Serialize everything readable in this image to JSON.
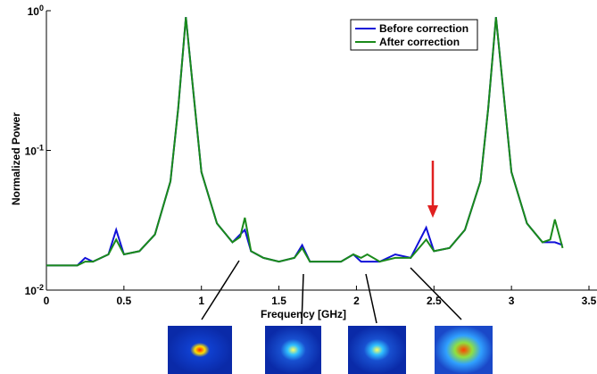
{
  "chart_data": {
    "type": "line",
    "x_label": "Frequency [GHz]",
    "y_label": "Normalized Power",
    "log_y": true,
    "grid": false,
    "legend": "upper right",
    "xlim": [
      0,
      3.5
    ],
    "xticks": [
      0,
      0.5,
      1,
      1.5,
      2,
      2.5,
      3,
      3.5
    ],
    "ylim": [
      0.01,
      1
    ],
    "yticks": [
      {
        "value": 0.01,
        "label": "10^-2"
      },
      {
        "value": 0.1,
        "label": "10^-1"
      },
      {
        "value": 1,
        "label": "10^0"
      }
    ],
    "x": [
      0,
      0.2,
      0.25,
      0.3,
      0.4,
      0.45,
      0.5,
      0.6,
      0.7,
      0.8,
      0.85,
      0.9,
      0.95,
      1.0,
      1.1,
      1.2,
      1.25,
      1.28,
      1.32,
      1.4,
      1.5,
      1.6,
      1.65,
      1.7,
      1.8,
      1.9,
      1.98,
      2.03,
      2.07,
      2.15,
      2.25,
      2.35,
      2.45,
      2.5,
      2.6,
      2.7,
      2.8,
      2.85,
      2.9,
      2.95,
      3.0,
      3.1,
      3.2,
      3.25,
      3.28,
      3.33
    ],
    "series": [
      {
        "name": "Before correction",
        "color": "#1010d8",
        "values": [
          0.015,
          0.015,
          0.017,
          0.016,
          0.018,
          0.027,
          0.018,
          0.019,
          0.025,
          0.06,
          0.2,
          0.9,
          0.25,
          0.07,
          0.03,
          0.022,
          0.025,
          0.027,
          0.019,
          0.017,
          0.016,
          0.017,
          0.021,
          0.016,
          0.016,
          0.016,
          0.018,
          0.016,
          0.016,
          0.016,
          0.018,
          0.017,
          0.028,
          0.019,
          0.02,
          0.027,
          0.06,
          0.2,
          0.9,
          0.25,
          0.07,
          0.03,
          0.022,
          0.022,
          0.022,
          0.021
        ]
      },
      {
        "name": "After correction",
        "color": "#1a8a1a",
        "values": [
          0.015,
          0.015,
          0.016,
          0.016,
          0.018,
          0.023,
          0.018,
          0.019,
          0.025,
          0.06,
          0.2,
          0.9,
          0.25,
          0.07,
          0.03,
          0.022,
          0.024,
          0.033,
          0.019,
          0.017,
          0.016,
          0.017,
          0.02,
          0.016,
          0.016,
          0.016,
          0.018,
          0.017,
          0.018,
          0.016,
          0.017,
          0.017,
          0.023,
          0.019,
          0.02,
          0.027,
          0.06,
          0.2,
          0.9,
          0.25,
          0.07,
          0.03,
          0.022,
          0.023,
          0.032,
          0.02
        ]
      }
    ]
  }
}
